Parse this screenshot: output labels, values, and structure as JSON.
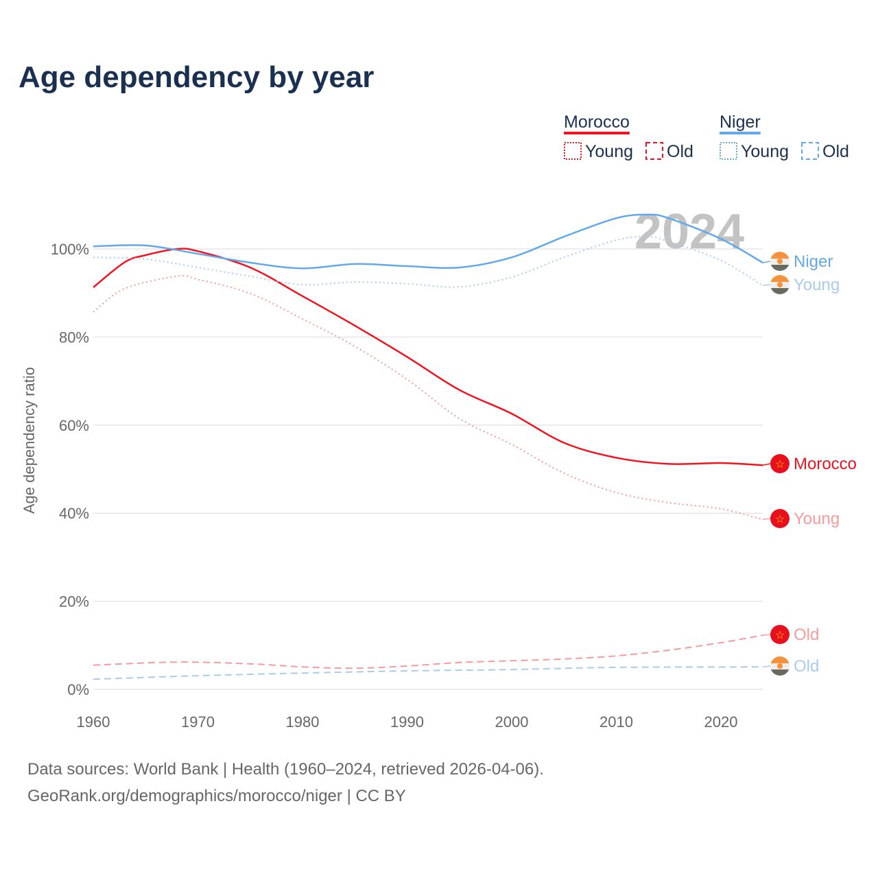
{
  "title": "Age dependency by year",
  "sources": [
    "Data sources: World Bank | Health (1960–2024, retrieved 2026-04-06).",
    "GeoRank.org/demographics/morocco/niger | CC BY"
  ],
  "legend": {
    "groups": [
      {
        "name": "Morocco",
        "color": "#f0121e",
        "items": [
          "Young",
          "Old"
        ]
      },
      {
        "name": "Niger",
        "color": "#62a8ea",
        "items": [
          "Young",
          "Old"
        ]
      }
    ]
  },
  "chart_data": {
    "type": "line",
    "title": "Age dependency by year",
    "xlabel": "",
    "ylabel": "Age dependency ratio",
    "xlim": [
      1960,
      2024
    ],
    "ylim": [
      0,
      110
    ],
    "x_ticks": [
      "1960",
      "1970",
      "1980",
      "1990",
      "2000",
      "2010",
      "2020"
    ],
    "y_ticks": [
      "0%",
      "20%",
      "40%",
      "60%",
      "80%",
      "100%"
    ],
    "year_watermark": "2024",
    "grid": true,
    "series": [
      {
        "name": "Morocco",
        "end_label": "Morocco",
        "color": "#f0121e",
        "style": "solid",
        "flag": "morocco",
        "x": [
          1960,
          1963,
          1965,
          1968,
          1970,
          1975,
          1980,
          1985,
          1990,
          1995,
          2000,
          2005,
          2010,
          2015,
          2020,
          2024
        ],
        "y": [
          91.3,
          97,
          98.6,
          100,
          99.5,
          95.8,
          89.3,
          82.6,
          75.5,
          68,
          62.6,
          56,
          52.6,
          51.2,
          51.4,
          50.9
        ]
      },
      {
        "name": "Morocco Young",
        "end_label": "Young",
        "color": "#f79a9a",
        "style": "dotted",
        "flag": "morocco",
        "x": [
          1960,
          1963,
          1968,
          1970,
          1975,
          1980,
          1985,
          1990,
          1995,
          2000,
          2005,
          2010,
          2015,
          2020,
          2024
        ],
        "y": [
          85.7,
          91,
          93.8,
          93.1,
          89.9,
          84.1,
          77.9,
          70.4,
          61.5,
          55.6,
          49.1,
          44.7,
          42.4,
          41,
          38.6
        ]
      },
      {
        "name": "Morocco Old",
        "end_label": "Old",
        "color": "#f79a9a",
        "style": "dashed",
        "flag": "morocco",
        "x": [
          1960,
          1968,
          1975,
          1980,
          1985,
          1990,
          1995,
          2000,
          2005,
          2010,
          2015,
          2020,
          2024
        ],
        "y": [
          5.5,
          6.2,
          5.8,
          5.1,
          4.8,
          5.3,
          6.1,
          6.5,
          6.9,
          7.6,
          8.9,
          10.6,
          12.3
        ]
      },
      {
        "name": "Niger",
        "end_label": "Niger",
        "color": "#62a8ea",
        "style": "solid",
        "flag": "niger",
        "x": [
          1960,
          1965,
          1970,
          1975,
          1980,
          1985,
          1990,
          1995,
          2000,
          2005,
          2010,
          2013,
          2015,
          2020,
          2024
        ],
        "y": [
          100.6,
          100.8,
          98.9,
          96.9,
          95.6,
          96.6,
          96.1,
          95.8,
          98.1,
          102.8,
          107,
          107.8,
          107,
          102.3,
          96.9
        ]
      },
      {
        "name": "Niger Young",
        "end_label": "Young",
        "color": "#a8cbef",
        "style": "dotted",
        "flag": "niger",
        "x": [
          1960,
          1965,
          1970,
          1975,
          1980,
          1985,
          1990,
          1995,
          2000,
          2005,
          2010,
          2013,
          2015,
          2020,
          2024
        ],
        "y": [
          98.1,
          97.7,
          95.8,
          93.8,
          91.9,
          92.5,
          92.1,
          91.4,
          93.6,
          98.1,
          102,
          102.8,
          101.7,
          97.4,
          91.7
        ]
      },
      {
        "name": "Niger Old",
        "end_label": "Old",
        "color": "#a8cbef",
        "style": "dashed",
        "flag": "niger",
        "x": [
          1960,
          1970,
          1980,
          1990,
          2000,
          2010,
          2024
        ],
        "y": [
          2.3,
          3.1,
          3.7,
          4.2,
          4.5,
          5.0,
          5.1
        ]
      }
    ]
  }
}
